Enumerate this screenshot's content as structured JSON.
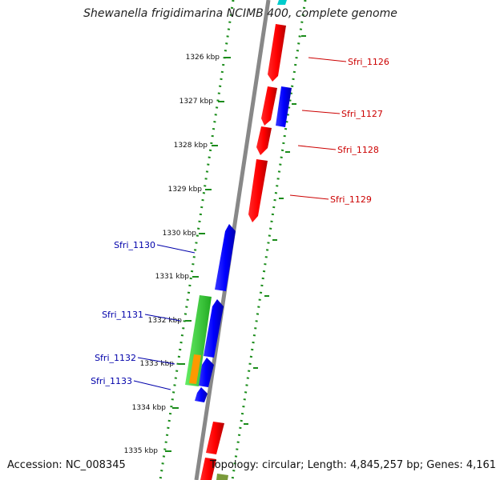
{
  "title": "Shewanella frigidimarina NCIMB 400, complete genome",
  "accession": "Accession: NC_008345",
  "topology": "Topology: circular; Length: 4,845,257 bp; Genes: 4,161",
  "kbp_labels": [
    "1326 kbp",
    "1327 kbp",
    "1328 kbp",
    "1329 kbp",
    "1330 kbp",
    "1331 kbp",
    "1332 kbp",
    "1333 kbp",
    "1334 kbp",
    "1335 kbp"
  ],
  "genes": [
    {
      "name": "Sfri_1126",
      "color": "#cc0000"
    },
    {
      "name": "Sfri_1127",
      "color": "#cc0000"
    },
    {
      "name": "Sfri_1128",
      "color": "#cc0000"
    },
    {
      "name": "Sfri_1129",
      "color": "#cc0000"
    },
    {
      "name": "Sfri_1130",
      "color": "#0000aa"
    },
    {
      "name": "Sfri_1131",
      "color": "#0000aa"
    },
    {
      "name": "Sfri_1132",
      "color": "#0000aa"
    },
    {
      "name": "Sfri_1133",
      "color": "#0000aa"
    }
  ],
  "colors": {
    "forward_strand": "#ff0000",
    "reverse_strand": "#0000ff",
    "green_feature": "#33cc33",
    "orange_feature": "#ff9900",
    "cyan_feature": "#00cccc",
    "backbone": "#888888",
    "dotted_track": "#1a8c1a"
  }
}
